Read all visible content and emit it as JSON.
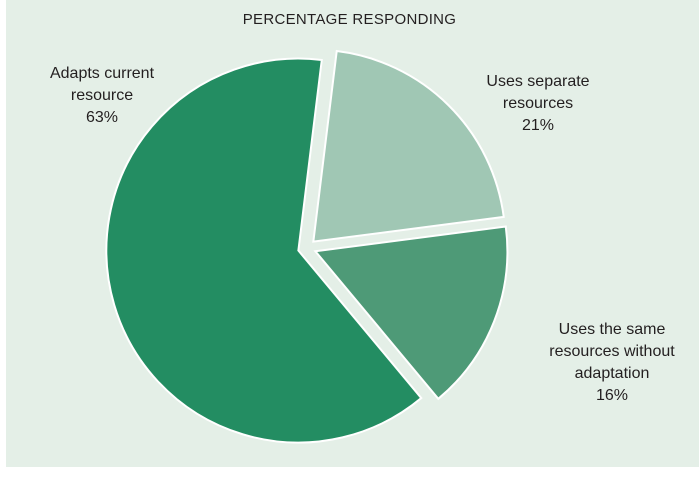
{
  "chart_data": {
    "type": "pie",
    "title": "PERCENTAGE RESPONDING",
    "slices": [
      {
        "label": [
          "Uses separate",
          "resources"
        ],
        "value": 21,
        "value_label": "21%",
        "color": "#a0c7b4"
      },
      {
        "label": [
          "Uses the same",
          "resources without",
          "adaptation"
        ],
        "value": 16,
        "value_label": "16%",
        "color": "#4e9a77"
      },
      {
        "label": [
          "Adapts current",
          "resource"
        ],
        "value": 63,
        "value_label": "63%",
        "color": "#238d62"
      }
    ],
    "start_angle_deg": 7,
    "exploded": true,
    "legend": "none"
  }
}
